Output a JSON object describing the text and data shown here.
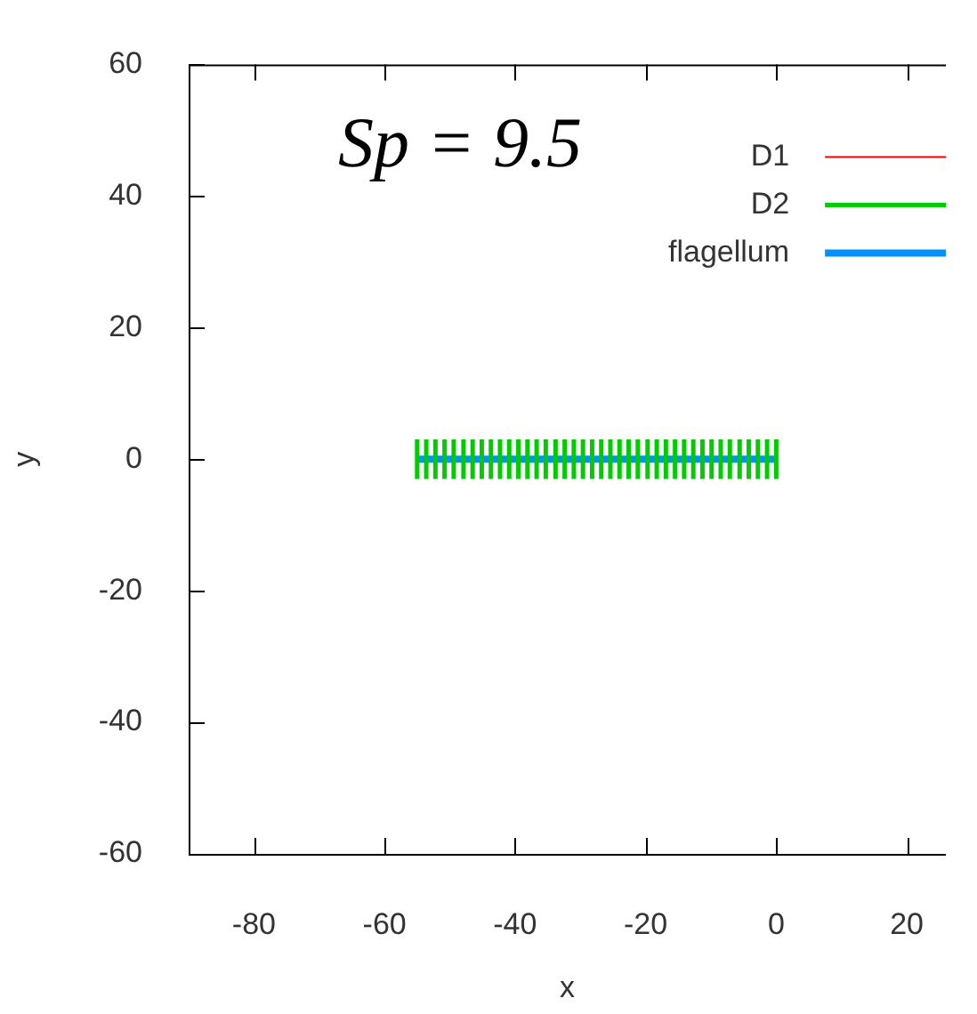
{
  "chart_data": {
    "type": "line",
    "xlabel": "x",
    "ylabel": "y",
    "xlim": [
      -90,
      26
    ],
    "ylim": [
      -60,
      60
    ],
    "xticks": [
      -80,
      -60,
      -40,
      -20,
      0,
      20
    ],
    "yticks": [
      -60,
      -40,
      -20,
      0,
      20,
      40,
      60
    ],
    "grid": false,
    "legend": "top right",
    "marker": "none",
    "annotations": [
      "Sp = 9.5"
    ],
    "series": [
      {
        "name": "D1",
        "color": "#ff0000"
      },
      {
        "name": "D2",
        "color": "#00cc00",
        "x": [
          -55,
          -55,
          null,
          -53.6,
          -53.6,
          null,
          -52.2,
          -52.2,
          null,
          -50.8,
          -50.8,
          null,
          -49.4,
          -49.4,
          null,
          -47.9,
          -47.9,
          null,
          -46.5,
          -46.5,
          null,
          -45.1,
          -45.1,
          null,
          -43.7,
          -43.7,
          null,
          -42.3,
          -42.3,
          null,
          -40.9,
          -40.9,
          null,
          -39.5,
          -39.5,
          null,
          -38.1,
          -38.1,
          null,
          -36.7,
          -36.7,
          null,
          -35.3,
          -35.3,
          null,
          -33.8,
          -33.8,
          null,
          -32.4,
          -32.4,
          null,
          -31,
          -31,
          null,
          -29.6,
          -29.6,
          null,
          -28.2,
          -28.2,
          null,
          -26.8,
          -26.8,
          null,
          -25.4,
          -25.4,
          null,
          -24,
          -24,
          null,
          -22.6,
          -22.6,
          null,
          -21.2,
          -21.2,
          null,
          -19.7,
          -19.7,
          null,
          -18.3,
          -18.3,
          null,
          -16.9,
          -16.9,
          null,
          -15.5,
          -15.5,
          null,
          -14.1,
          -14.1,
          null,
          -12.7,
          -12.7,
          null,
          -11.3,
          -11.3,
          null,
          -9.9,
          -9.9,
          null,
          -8.5,
          -8.5,
          null,
          -7.1,
          -7.1,
          null,
          -5.6,
          -5.6,
          null,
          -4.2,
          -4.2,
          null,
          -2.8,
          -2.8,
          null,
          -1.4,
          -1.4,
          null,
          0,
          0
        ],
        "values": [
          -3,
          3,
          null,
          -3,
          3,
          null,
          -3,
          3,
          null,
          -3,
          3,
          null,
          -3,
          3,
          null,
          -3,
          3,
          null,
          -3,
          3,
          null,
          -3,
          3,
          null,
          -3,
          3,
          null,
          -3,
          3,
          null,
          -3,
          3,
          null,
          -3,
          3,
          null,
          -3,
          3,
          null,
          -3,
          3,
          null,
          -3,
          3,
          null,
          -3,
          3,
          null,
          -3,
          3,
          null,
          -3,
          3,
          null,
          -3,
          3,
          null,
          -3,
          3,
          null,
          -3,
          3,
          null,
          -3,
          3,
          null,
          -3,
          3,
          null,
          -3,
          3,
          null,
          -3,
          3,
          null,
          -3,
          3,
          null,
          -3,
          3,
          null,
          -3,
          3,
          null,
          -3,
          3,
          null,
          -3,
          3,
          null,
          -3,
          3,
          null,
          -3,
          3,
          null,
          -3,
          3,
          null,
          -3,
          3,
          null,
          -3,
          3,
          null,
          -3,
          3,
          null,
          -3,
          3,
          null,
          -3,
          3,
          null,
          -3,
          3,
          null,
          -3,
          3
        ]
      },
      {
        "name": "flagellum",
        "color": "#0091ff",
        "x": [
          -55,
          0
        ],
        "values": [
          0,
          0
        ]
      }
    ]
  }
}
